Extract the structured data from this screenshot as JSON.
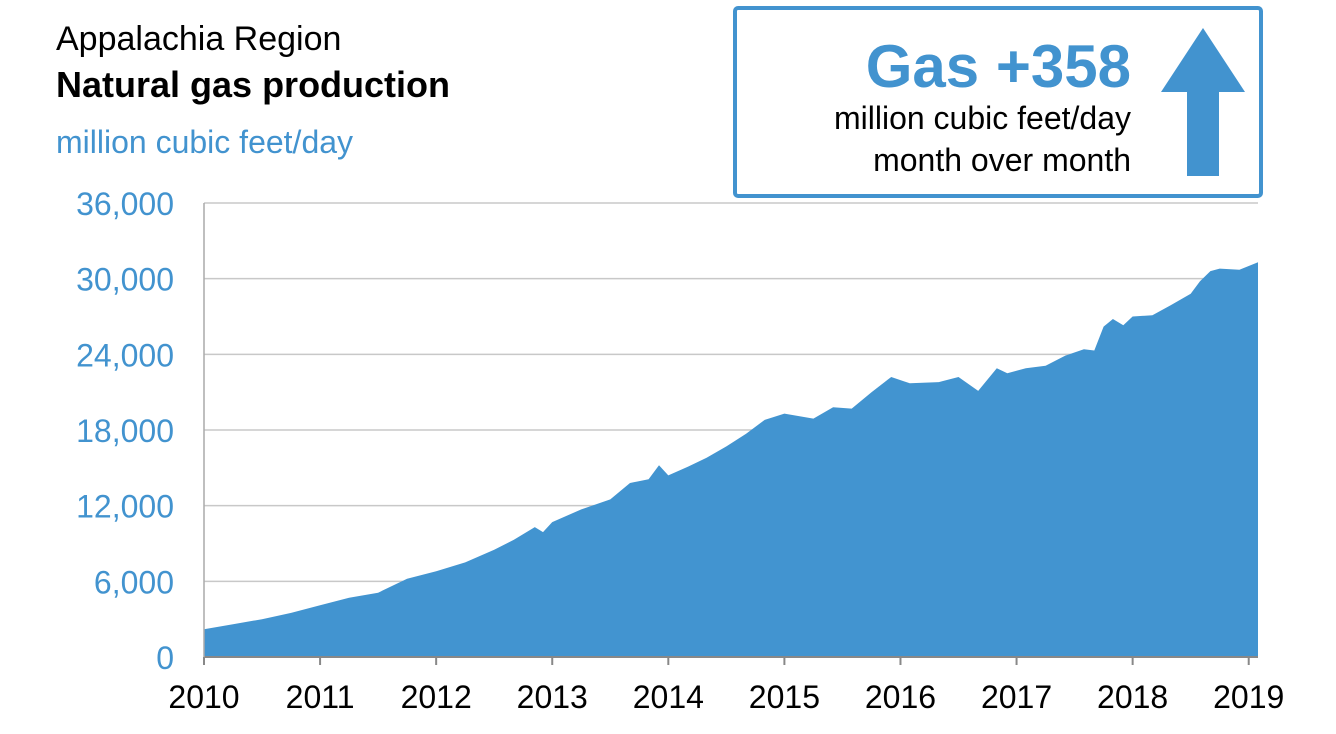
{
  "header": {
    "region": "Appalachia Region",
    "title": "Natural gas production",
    "units": "million cubic feet/day"
  },
  "callout": {
    "headline": "Gas +358",
    "line1": "million cubic feet/day",
    "line2": "month over month",
    "direction": "up",
    "icon": "arrow-up-icon"
  },
  "colors": {
    "accent": "#4293cf",
    "area": "#4294d0",
    "grid": "#c8c8c8"
  },
  "chart_data": {
    "type": "area",
    "title": "Natural gas production",
    "ylabel": "million cubic feet/day",
    "ylim": [
      0,
      36000
    ],
    "yticks": [
      0,
      6000,
      12000,
      18000,
      24000,
      30000,
      36000
    ],
    "ytick_labels": [
      "0",
      "6,000",
      "12,000",
      "18,000",
      "24,000",
      "30,000",
      "36,000"
    ],
    "xticks": [
      2010,
      2011,
      2012,
      2013,
      2014,
      2015,
      2016,
      2017,
      2018,
      2019
    ],
    "xlim": [
      2010,
      2019.08
    ],
    "grid": true,
    "series": [
      {
        "values": [
          [
            2010.0,
            2200
          ],
          [
            2010.25,
            2600
          ],
          [
            2010.5,
            3000
          ],
          [
            2010.75,
            3500
          ],
          [
            2011.0,
            4100
          ],
          [
            2011.25,
            4700
          ],
          [
            2011.5,
            5100
          ],
          [
            2011.75,
            6200
          ],
          [
            2012.0,
            6800
          ],
          [
            2012.25,
            7500
          ],
          [
            2012.5,
            8500
          ],
          [
            2012.67,
            9300
          ],
          [
            2012.85,
            10300
          ],
          [
            2012.92,
            9900
          ],
          [
            2013.0,
            10700
          ],
          [
            2013.25,
            11700
          ],
          [
            2013.5,
            12500
          ],
          [
            2013.67,
            13800
          ],
          [
            2013.83,
            14100
          ],
          [
            2013.92,
            15200
          ],
          [
            2014.0,
            14400
          ],
          [
            2014.17,
            15100
          ],
          [
            2014.33,
            15800
          ],
          [
            2014.5,
            16700
          ],
          [
            2014.67,
            17700
          ],
          [
            2014.83,
            18800
          ],
          [
            2015.0,
            19300
          ],
          [
            2015.25,
            18900
          ],
          [
            2015.42,
            19800
          ],
          [
            2015.58,
            19700
          ],
          [
            2015.75,
            21000
          ],
          [
            2015.92,
            22200
          ],
          [
            2016.08,
            21700
          ],
          [
            2016.33,
            21800
          ],
          [
            2016.5,
            22200
          ],
          [
            2016.67,
            21100
          ],
          [
            2016.83,
            22900
          ],
          [
            2016.92,
            22500
          ],
          [
            2017.08,
            22900
          ],
          [
            2017.25,
            23100
          ],
          [
            2017.42,
            23900
          ],
          [
            2017.58,
            24400
          ],
          [
            2017.67,
            24300
          ],
          [
            2017.75,
            26200
          ],
          [
            2017.83,
            26800
          ],
          [
            2017.92,
            26300
          ],
          [
            2018.0,
            27000
          ],
          [
            2018.17,
            27100
          ],
          [
            2018.33,
            27900
          ],
          [
            2018.5,
            28800
          ],
          [
            2018.58,
            29800
          ],
          [
            2018.67,
            30600
          ],
          [
            2018.75,
            30800
          ],
          [
            2018.92,
            30700
          ],
          [
            2019.08,
            31300
          ]
        ]
      }
    ]
  }
}
